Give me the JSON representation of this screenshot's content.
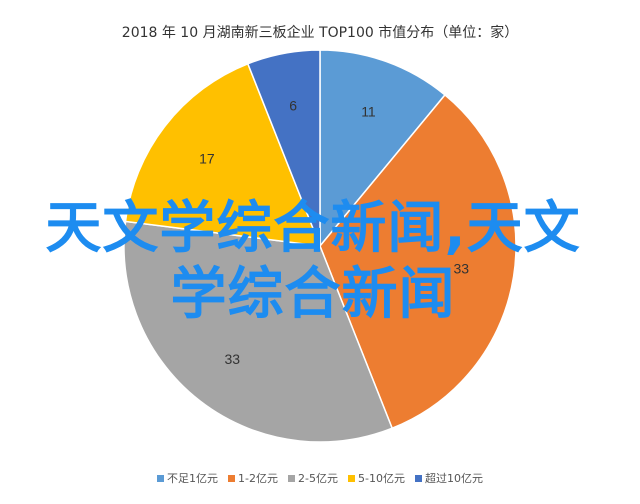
{
  "chart_data": {
    "type": "pie",
    "title": "2018 年 10 月湖南新三板企业 TOP100 市值分布（单位：家）",
    "categories": [
      "不足1亿元",
      "1-2亿元",
      "2-5亿元",
      "5-10亿元",
      "超过10亿元"
    ],
    "values": [
      11,
      33,
      33,
      17,
      6
    ],
    "colors": [
      "#5b9bd5",
      "#ed7d31",
      "#a5a5a5",
      "#ffc000",
      "#4472c4"
    ],
    "legend_position": "bottom"
  },
  "overlay_text": "天文学综合新闻,天文学综合新闻"
}
